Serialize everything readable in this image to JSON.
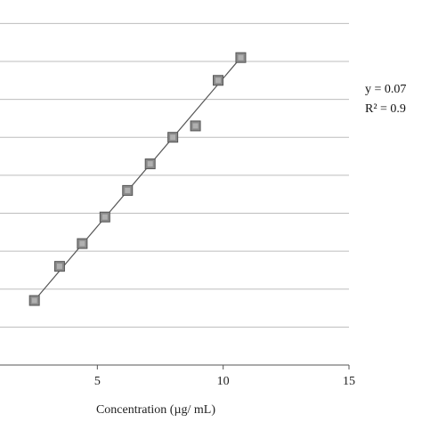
{
  "chart_data": {
    "type": "scatter",
    "title": "",
    "xlabel": "Concentration (µg/ mL)",
    "ylabel": "",
    "xlim": [
      0,
      15
    ],
    "ylim": [
      0,
      0.95
    ],
    "x_ticks": [
      5,
      10,
      15
    ],
    "y_grid_step": 0.1,
    "grid": true,
    "legend": "none",
    "series": [
      {
        "marker": "square",
        "marker_color": "#8a8a8a",
        "points": [
          {
            "x": 2.5,
            "y": 0.17
          },
          {
            "x": 3.5,
            "y": 0.26
          },
          {
            "x": 4.4,
            "y": 0.32
          },
          {
            "x": 5.3,
            "y": 0.39
          },
          {
            "x": 6.2,
            "y": 0.46
          },
          {
            "x": 7.1,
            "y": 0.53
          },
          {
            "x": 8.0,
            "y": 0.6
          },
          {
            "x": 8.9,
            "y": 0.63
          },
          {
            "x": 9.8,
            "y": 0.75
          },
          {
            "x": 10.7,
            "y": 0.81
          }
        ]
      }
    ],
    "trendline": {
      "x_start": 2.5,
      "y_start": 0.17,
      "x_end": 10.7,
      "y_end": 0.81,
      "color": "#555555"
    },
    "annotations": {
      "equation": "y = 0.07",
      "r_squared": "R² = 0.9"
    },
    "colors": {
      "grid": "#bdbdbd",
      "axis": "#555555"
    }
  }
}
